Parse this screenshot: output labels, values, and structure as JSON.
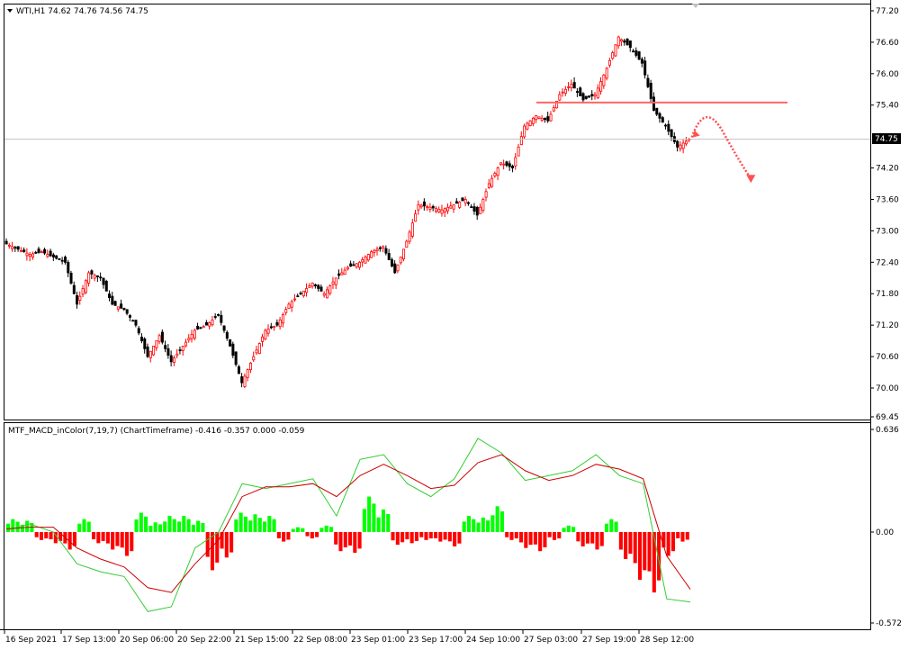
{
  "symbol_header": "WTI,H1  74.62 74.76 74.56 74.75",
  "indicator_header": "MTF_MACD_inColor(7,19,7) (ChartTimeframe) -0.416 -0.357 0.000 -0.059",
  "current_price_label": "74.75",
  "colors": {
    "bull": "#ff0000",
    "bear": "#000000",
    "hist_pos": "#00ff00",
    "hist_neg": "#ff0000",
    "macd_line": "#32cd32",
    "signal_line": "#cc0000",
    "resistance": "#ff6666",
    "arrow": "#ff5050",
    "grid_frame": "#000000"
  },
  "price_axis": {
    "ticks": [
      "77.20",
      "76.60",
      "76.00",
      "75.40",
      "74.20",
      "73.60",
      "73.00",
      "72.40",
      "71.80",
      "71.20",
      "70.60",
      "70.00",
      "69.45"
    ],
    "ylim": [
      69.45,
      77.2
    ]
  },
  "macd_axis": {
    "ticks": [
      "0.636",
      "0.00",
      "-0.572"
    ],
    "ylim": [
      -0.572,
      0.636
    ]
  },
  "time_axis": {
    "ticks": [
      "16 Sep 2021",
      "17 Sep 13:00",
      "20 Sep 06:00",
      "20 Sep 22:00",
      "21 Sep 15:00",
      "22 Sep 08:00",
      "23 Sep 01:00",
      "23 Sep 17:00",
      "24 Sep 10:00",
      "27 Sep 03:00",
      "27 Sep 19:00",
      "28 Sep 12:00"
    ]
  },
  "chart_data": [
    {
      "type": "candlestick",
      "series_name": "WTI,H1",
      "resistance_level": 75.45,
      "current_price": 74.75,
      "ylim": [
        69.45,
        77.2
      ],
      "close_path": [
        [
          0,
          72.75
        ],
        [
          4,
          72.65
        ],
        [
          8,
          72.55
        ],
        [
          12,
          72.6
        ],
        [
          16,
          72.5
        ],
        [
          20,
          72.4
        ],
        [
          24,
          71.6
        ],
        [
          28,
          72.2
        ],
        [
          32,
          72.1
        ],
        [
          36,
          71.6
        ],
        [
          40,
          71.5
        ],
        [
          44,
          71.2
        ],
        [
          48,
          70.6
        ],
        [
          52,
          71.0
        ],
        [
          56,
          70.5
        ],
        [
          60,
          70.8
        ],
        [
          64,
          71.1
        ],
        [
          68,
          71.2
        ],
        [
          72,
          71.4
        ],
        [
          76,
          70.8
        ],
        [
          80,
          70.1
        ],
        [
          84,
          70.6
        ],
        [
          88,
          71.1
        ],
        [
          92,
          71.2
        ],
        [
          96,
          71.6
        ],
        [
          100,
          71.8
        ],
        [
          104,
          72.0
        ],
        [
          108,
          71.8
        ],
        [
          112,
          72.1
        ],
        [
          116,
          72.3
        ],
        [
          120,
          72.4
        ],
        [
          124,
          72.6
        ],
        [
          128,
          72.7
        ],
        [
          132,
          72.2
        ],
        [
          136,
          72.8
        ],
        [
          140,
          73.5
        ],
        [
          144,
          73.45
        ],
        [
          148,
          73.4
        ],
        [
          152,
          73.5
        ],
        [
          156,
          73.6
        ],
        [
          160,
          73.3
        ],
        [
          164,
          73.9
        ],
        [
          168,
          74.3
        ],
        [
          172,
          74.2
        ],
        [
          176,
          75.0
        ],
        [
          180,
          75.2
        ],
        [
          184,
          75.1
        ],
        [
          188,
          75.6
        ],
        [
          192,
          75.8
        ],
        [
          196,
          75.5
        ],
        [
          200,
          75.6
        ],
        [
          204,
          76.1
        ],
        [
          208,
          76.7
        ],
        [
          212,
          76.5
        ],
        [
          216,
          76.2
        ],
        [
          220,
          75.3
        ],
        [
          224,
          75.0
        ],
        [
          228,
          74.6
        ],
        [
          232,
          74.75
        ]
      ],
      "projection": [
        [
          232,
          74.75
        ],
        [
          235,
          75.4
        ],
        [
          242,
          74.0
        ]
      ]
    },
    {
      "type": "bar",
      "series_name": "MTF_MACD_inColor(7,19,7)",
      "ylim": [
        -0.572,
        0.636
      ],
      "histogram": [
        0.08,
        0.07,
        -0.05,
        -0.07,
        -0.11,
        0.08,
        -0.07,
        -0.11,
        -0.15,
        0.12,
        0.06,
        0.1,
        0.1,
        0.07,
        -0.24,
        -0.16,
        0.12,
        0.11,
        0.1,
        -0.06,
        0.03,
        -0.04,
        0.04,
        -0.12,
        -0.13,
        0.22,
        0.14,
        -0.08,
        -0.07,
        -0.05,
        -0.06,
        -0.09,
        0.1,
        0.09,
        0.16,
        -0.05,
        -0.1,
        -0.12,
        -0.05,
        0.04,
        -0.09,
        -0.11,
        0.08,
        -0.17,
        -0.3,
        -0.38,
        -0.15,
        -0.06
      ],
      "macd_line": [
        0.01,
        0.05,
        0.0,
        -0.2,
        -0.25,
        -0.28,
        -0.5,
        -0.47,
        -0.1,
        0.0,
        0.3,
        0.27,
        0.3,
        0.33,
        0.1,
        0.45,
        0.48,
        0.3,
        0.22,
        0.33,
        0.58,
        0.49,
        0.32,
        0.35,
        0.38,
        0.48,
        0.35,
        0.3,
        -0.42,
        -0.44
      ],
      "signal_line": [
        0.02,
        0.03,
        0.03,
        -0.1,
        -0.17,
        -0.22,
        -0.35,
        -0.38,
        -0.2,
        -0.05,
        0.22,
        0.28,
        0.28,
        0.3,
        0.22,
        0.35,
        0.42,
        0.35,
        0.27,
        0.29,
        0.43,
        0.48,
        0.38,
        0.32,
        0.35,
        0.42,
        0.39,
        0.33,
        -0.15,
        -0.36
      ]
    }
  ]
}
